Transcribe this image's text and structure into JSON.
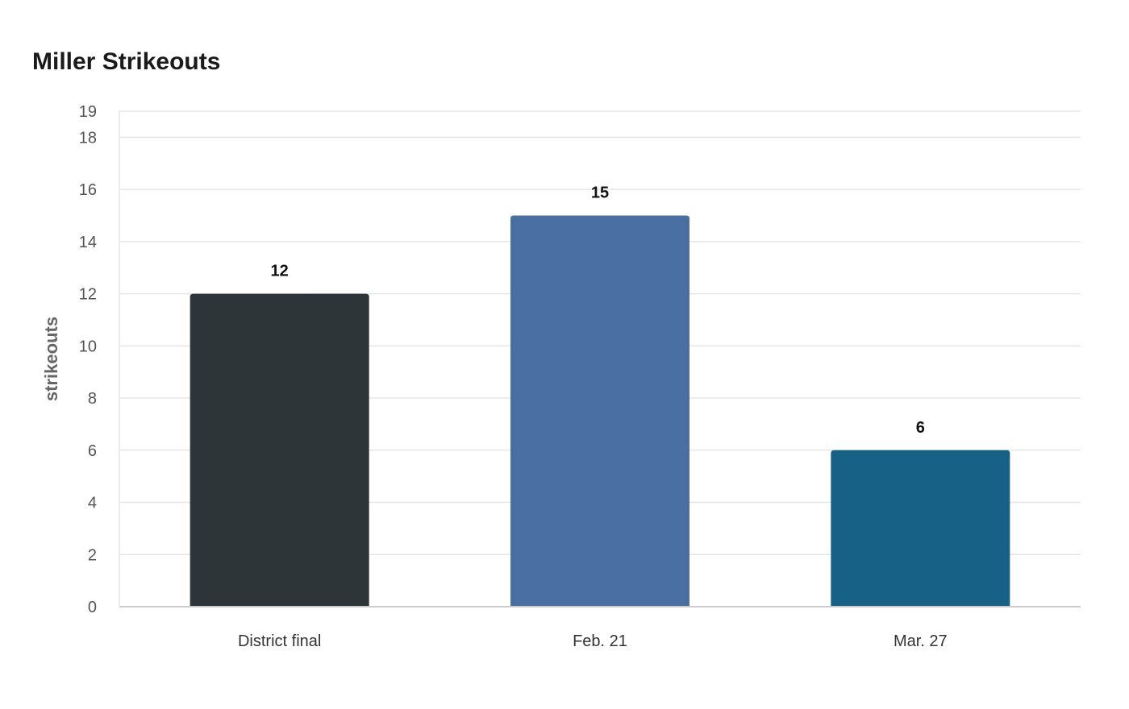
{
  "chart_data": {
    "type": "bar",
    "title": "Miller Strikeouts",
    "xlabel": "",
    "ylabel": "strikeouts",
    "categories": [
      "District final",
      "Feb. 21",
      "Mar. 27"
    ],
    "values": [
      12,
      15,
      6
    ],
    "data_labels": [
      "12",
      "15",
      "6"
    ],
    "bar_colors": [
      "#2e3538",
      "#4a6fa3",
      "#176187"
    ],
    "ylim": [
      0,
      19
    ],
    "y_ticks": [
      0,
      2,
      4,
      6,
      8,
      10,
      12,
      14,
      16,
      18,
      19
    ],
    "grid": true,
    "legend": "none"
  },
  "colors": {
    "grid": "#e6e6e6",
    "axis": "#cccccc"
  }
}
